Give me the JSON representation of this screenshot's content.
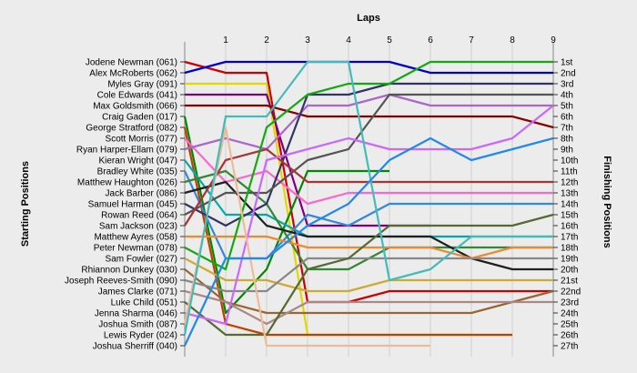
{
  "chart_data": {
    "type": "line",
    "title": "Laps",
    "ylabel_left": "Starting Positions",
    "ylabel_right": "Finishing Positions",
    "x": [
      0,
      1,
      2,
      3,
      4,
      5,
      6,
      7,
      8,
      9
    ],
    "x_tick_labels": [
      "1",
      "2",
      "3",
      "4",
      "5",
      "6",
      "7",
      "8",
      "9"
    ],
    "y_inverted": true,
    "ylim": [
      1,
      27
    ],
    "grid": true,
    "row_labels": [
      "Jodene Newman (061)",
      "Alex McRoberts (062)",
      "Myles Gray (091)",
      "Cole Edwards (041)",
      "Max Goldsmith (066)",
      "Craig Gaden (017)",
      "George Stratford (082)",
      "Scott Morris (077)",
      "Ryan Harper-Ellam (079)",
      "Kieran Wright (047)",
      "Bradley White (035)",
      "Matthew Haughton (026)",
      "Jack Barber (086)",
      "Samuel Harman (045)",
      "Rowan Reed (064)",
      "Sam Jackson (023)",
      "Matthew Ayres (058)",
      "Peter Newman (078)",
      "Sam Fowler (027)",
      "Rhiannon Dunkey (030)",
      "Joseph Reeves-Smith (090)",
      "James Clarke (071)",
      "Luke Child (051)",
      "Jenna Sharma (046)",
      "Joshua Smith (087)",
      "Lewis Ryder (024)",
      "Joshua Sherriff (040)"
    ],
    "finish_labels": [
      "1st",
      "2nd",
      "3rd",
      "4th",
      "5th",
      "6th",
      "7th",
      "8th",
      "9th",
      "10th",
      "11th",
      "12th",
      "13th",
      "14th",
      "15th",
      "16th",
      "17th",
      "18th",
      "19th",
      "20th",
      "21st",
      "22nd",
      "23rd",
      "24th",
      "25th",
      "26th",
      "27th"
    ],
    "series": [
      {
        "color": "#cc0000",
        "values": [
          1,
          2,
          2,
          23,
          23,
          22,
          22,
          22,
          22,
          22
        ]
      },
      {
        "color": "#0000cc",
        "values": [
          2,
          1,
          1,
          1,
          1,
          1,
          2,
          2,
          2,
          2
        ]
      },
      {
        "color": "#e0d800",
        "values": [
          3,
          3,
          3,
          26,
          26,
          26,
          26,
          26,
          null,
          null
        ]
      },
      {
        "color": "#800080",
        "values": [
          4,
          4,
          4,
          16,
          16,
          16,
          16,
          null,
          null,
          null
        ]
      },
      {
        "color": "#880000",
        "values": [
          5,
          5,
          5,
          6,
          6,
          6,
          6,
          6,
          6,
          7
        ]
      },
      {
        "color": "#008800",
        "values": [
          6,
          24,
          20,
          11,
          11,
          11,
          null,
          null,
          null,
          null
        ]
      },
      {
        "color": "#c04000",
        "values": [
          7,
          25,
          26,
          26,
          26,
          26,
          26,
          26,
          26,
          null
        ]
      },
      {
        "color": "#ff66cc",
        "values": [
          8,
          12,
          11,
          14,
          13,
          13,
          13,
          13,
          13,
          13
        ]
      },
      {
        "color": "#aa66cc",
        "values": [
          9,
          8,
          9,
          5,
          5,
          4,
          5,
          5,
          5,
          5
        ]
      },
      {
        "color": "#00aaaa",
        "values": [
          10,
          15,
          15,
          17,
          17,
          17,
          17,
          17,
          17,
          17
        ]
      },
      {
        "color": "#3388dd",
        "values": [
          11,
          19,
          19,
          15,
          16,
          14,
          14,
          14,
          14,
          14
        ]
      },
      {
        "color": "#338833",
        "values": [
          12,
          11,
          14,
          20,
          20,
          18,
          18,
          18,
          18,
          18
        ]
      },
      {
        "color": "#202020",
        "values": [
          13,
          12,
          16,
          17,
          17,
          17,
          17,
          19,
          20,
          20
        ]
      },
      {
        "color": "#333366",
        "values": [
          14,
          16,
          14,
          4,
          4,
          3,
          3,
          3,
          3,
          3
        ]
      },
      {
        "color": "#555555",
        "values": [
          15,
          13,
          13,
          10,
          9,
          4,
          4,
          4,
          4,
          4
        ]
      },
      {
        "color": "#aa3333",
        "values": [
          16,
          10,
          9,
          12,
          12,
          12,
          12,
          12,
          12,
          12
        ]
      },
      {
        "color": "#ee8833",
        "values": [
          17,
          17,
          17,
          18,
          18,
          18,
          18,
          19,
          18,
          18
        ]
      },
      {
        "color": "#11aa11",
        "values": [
          18,
          20,
          7,
          4,
          3,
          3,
          1,
          1,
          1,
          1
        ]
      },
      {
        "color": "#ccaa33",
        "values": [
          19,
          21,
          21,
          22,
          22,
          21,
          21,
          21,
          21,
          21
        ]
      },
      {
        "color": "#996633",
        "values": [
          20,
          23,
          24,
          24,
          24,
          24,
          24,
          24,
          23,
          22
        ]
      },
      {
        "color": "#888888",
        "values": [
          21,
          22,
          22,
          19,
          19,
          19,
          19,
          19,
          19,
          19
        ]
      },
      {
        "color": "#aa8888",
        "values": [
          22,
          23,
          25,
          23,
          23,
          23,
          23,
          23,
          23,
          23
        ]
      },
      {
        "color": "#556b2f",
        "values": [
          23,
          26,
          26,
          20,
          19,
          16,
          16,
          16,
          16,
          15
        ]
      },
      {
        "color": "#cc66ff",
        "values": [
          24,
          25,
          10,
          9,
          8,
          9,
          9,
          9,
          8,
          5
        ]
      },
      {
        "color": "#eebb99",
        "values": [
          25,
          7,
          27,
          27,
          27,
          27,
          27,
          null,
          null,
          null
        ]
      },
      {
        "color": "#44bbbb",
        "values": [
          26,
          6,
          6,
          1,
          1,
          21,
          20,
          17,
          17,
          17
        ]
      },
      {
        "color": "#2288ee",
        "values": [
          27,
          19,
          19,
          16,
          14,
          10,
          8,
          10,
          9,
          8
        ]
      }
    ]
  }
}
